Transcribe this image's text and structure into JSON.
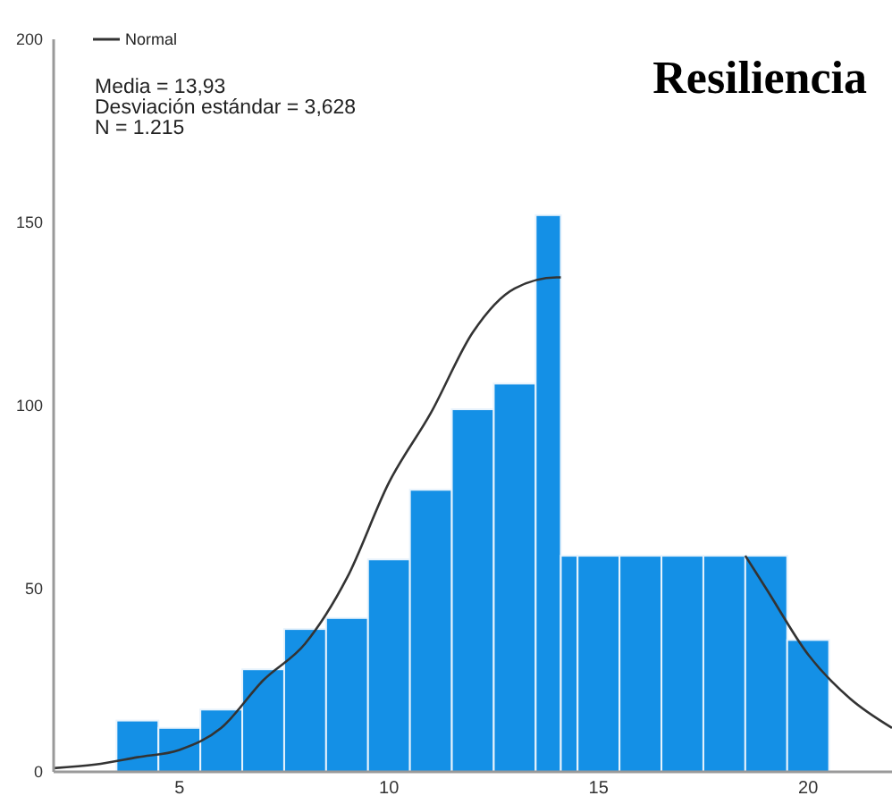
{
  "chart_data": {
    "type": "histogram",
    "title": "Resiliencia",
    "annotations": [
      "Media = 13,93",
      "Desviación estándar = 3,628",
      "N = 1.215"
    ],
    "bins": [
      3.5,
      4.5,
      5.5,
      6.5,
      7.5,
      8.5,
      9.5,
      10.5,
      11.5,
      12.5,
      13.5,
      14.1,
      14.5,
      15.5,
      16.5,
      17.5,
      18.5,
      19.5,
      20.5
    ],
    "values": [
      14,
      12,
      17,
      28,
      39,
      42,
      58,
      77,
      99,
      106,
      152,
      59,
      59,
      59,
      59,
      59,
      59,
      36
    ],
    "color": "#1490e6",
    "series": [
      {
        "name": "Normal",
        "type": "line",
        "color": "#333333",
        "x": [
          2,
          3,
          4,
          5,
          6,
          7,
          8,
          9,
          10,
          11,
          12,
          13,
          14,
          14.1,
          16,
          18.5,
          19,
          20,
          21,
          22
        ],
        "values": [
          1,
          2,
          4,
          6,
          12,
          25,
          35,
          53,
          79,
          98,
          120,
          132,
          135,
          135,
          null,
          59,
          50,
          32,
          20,
          12
        ]
      }
    ],
    "xlim": [
      2,
      22
    ],
    "xticks": [
      5,
      10,
      15,
      20
    ],
    "ylim": [
      0,
      200
    ],
    "yticks": [
      0,
      50,
      100,
      150,
      200
    ],
    "legend": "top left",
    "grid": false
  }
}
